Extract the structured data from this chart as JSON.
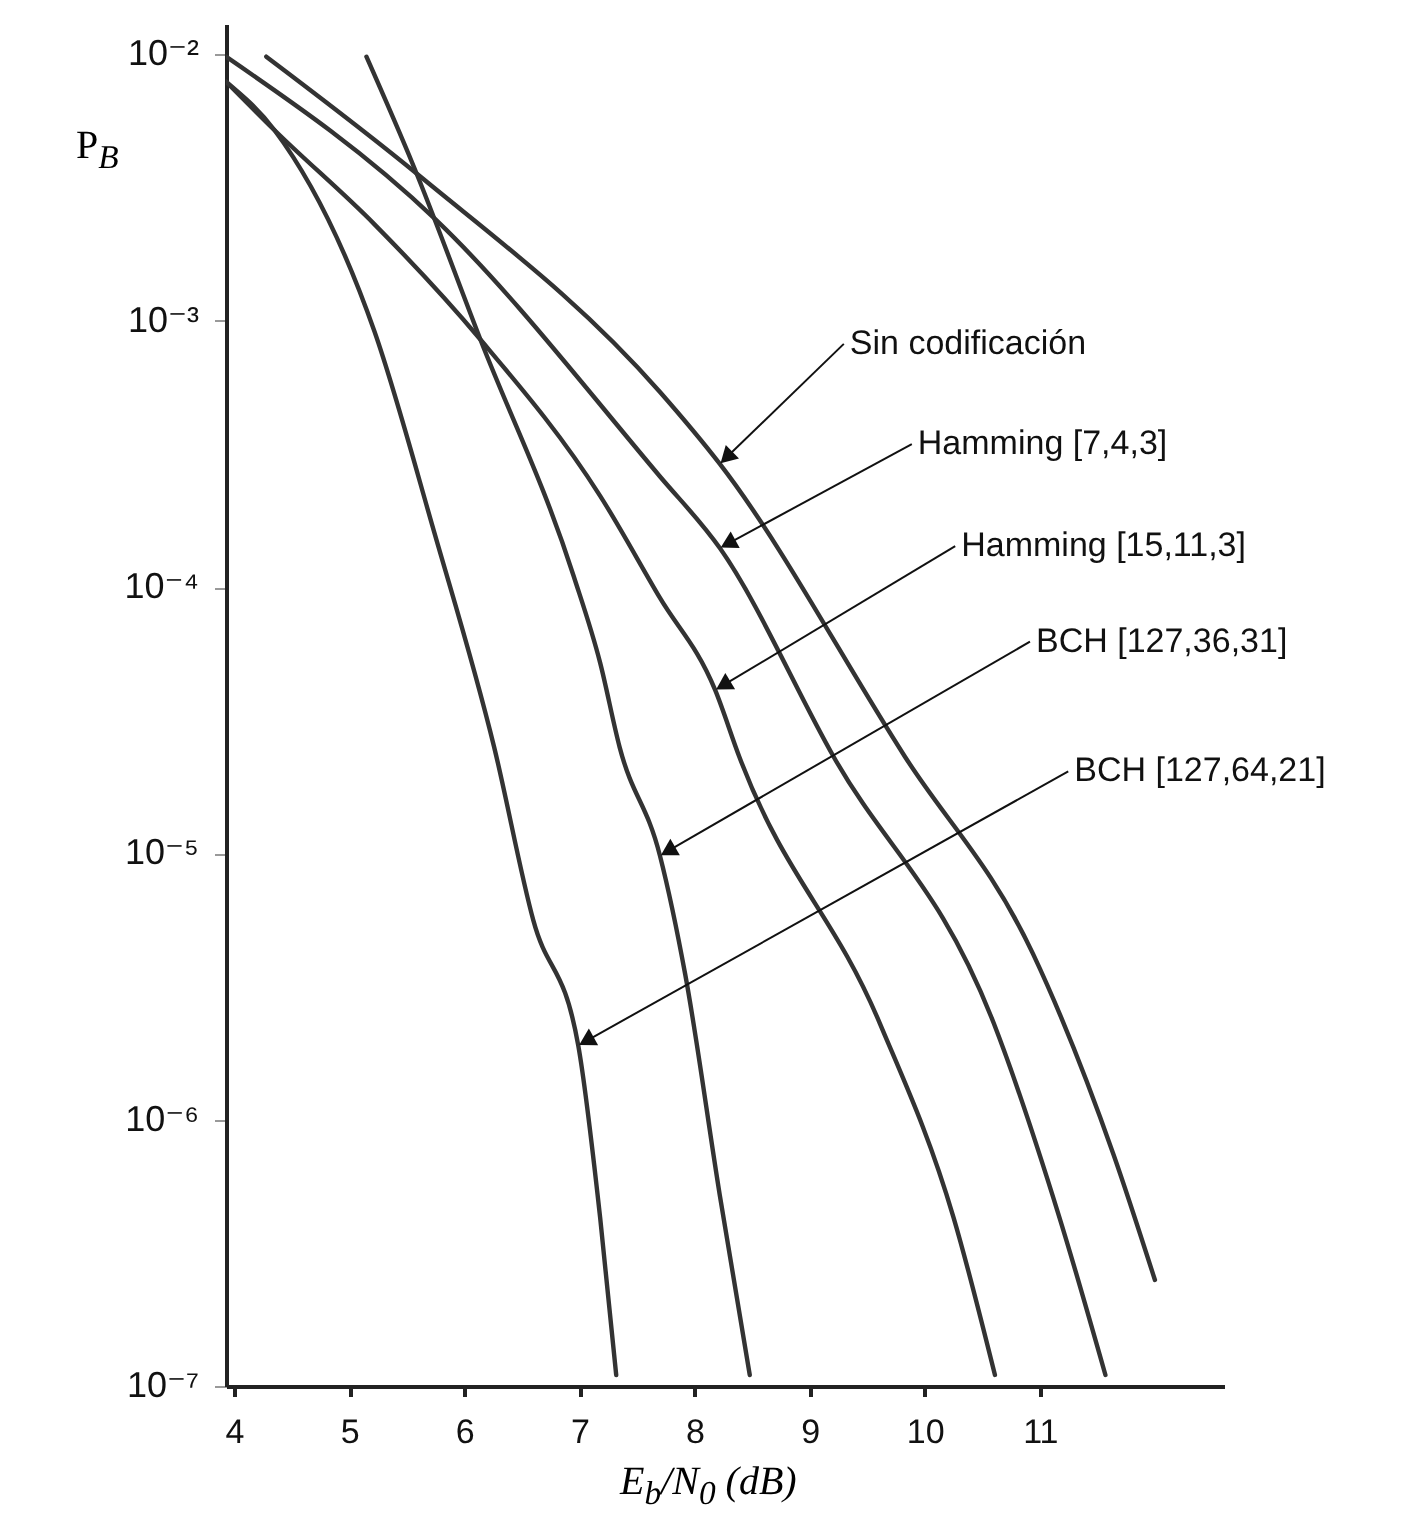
{
  "chart_data": {
    "type": "line",
    "xlabel": "E$_{b}$/N$_{0}$ (dB)",
    "ylabel": "P$_{B}$",
    "xlim": [
      3.93,
      12.6
    ],
    "xticks": [
      4,
      5,
      6,
      7,
      8,
      9,
      10,
      11
    ],
    "ylim": [
      1e-07,
      0.013
    ],
    "log": "y",
    "yticks": [
      {
        "value": 0.01,
        "label": "10⁻²"
      },
      {
        "value": 0.001,
        "label": "10⁻³"
      },
      {
        "value": 0.0001,
        "label": "10⁻⁴"
      },
      {
        "value": 1e-05,
        "label": "10⁻⁵"
      },
      {
        "value": 1e-06,
        "label": "10⁻⁶"
      },
      {
        "value": 1e-07,
        "label": "10⁻⁷"
      }
    ],
    "annotations": [
      {
        "text": "Sin codificación",
        "x": 8.22,
        "y": 0.00029
      },
      {
        "text": "Hamming [7,4,3]",
        "x": 8.22,
        "y": 0.00014
      },
      {
        "text": "Hamming [15,11,3]",
        "x": 8.18,
        "y": 4.1e-05
      },
      {
        "text": "BCH [127,36,31]",
        "x": 7.7,
        "y": 9.8e-06
      },
      {
        "text": "BCH [127,64,21]",
        "x": 6.99,
        "y": 1.9e-06
      }
    ],
    "series": [
      {
        "color": "#333333",
        "x": [
          4.28,
          5.61,
          7.7,
          8.22,
          9.83,
          10.94,
          11.64,
          12.0
        ],
        "values": [
          0.0098,
          0.0035,
          0.00054,
          0.00029,
          2.3e-05,
          4.2e-06,
          7.4e-07,
          2.5e-07
        ]
      },
      {
        "color": "#333333",
        "x": [
          3.93,
          5.75,
          7.7,
          8.22,
          9.21,
          10.6,
          11.17,
          11.57
        ],
        "values": [
          0.0098,
          0.0024,
          0.00026,
          0.00014,
          2.3e-05,
          2.3e-06,
          4.3e-07,
          1.1e-07
        ]
      },
      {
        "color": "#333333",
        "x": [
          3.93,
          4.35,
          5.22,
          6.14,
          7.18,
          7.7,
          8.18,
          8.39,
          9.61,
          10.25,
          10.61
        ],
        "values": [
          0.0079,
          0.0052,
          0.0023,
          0.00085,
          0.00022,
          9.1e-05,
          4.1e-05,
          2.3e-05,
          2.3e-06,
          4.3e-07,
          1.1e-07
        ]
      },
      {
        "color": "#333333",
        "x": [
          5.15,
          5.56,
          6.14,
          6.95,
          7.18,
          7.35,
          7.7,
          7.92,
          8.22,
          8.48
        ],
        "values": [
          0.0098,
          0.0038,
          0.00085,
          0.00011,
          5.2e-05,
          2.5e-05,
          9.8e-06,
          3.5e-06,
          5.2e-07,
          1.1e-07
        ]
      },
      {
        "color": "#333333",
        "x": [
          3.93,
          4.35,
          5.22,
          5.74,
          6.26,
          6.6,
          6.99,
          7.18,
          7.32
        ],
        "values": [
          0.0079,
          0.0052,
          0.00091,
          0.00016,
          2.5e-05,
          5.6e-06,
          1.9e-06,
          4.3e-07,
          1.1e-07
        ]
      }
    ]
  }
}
